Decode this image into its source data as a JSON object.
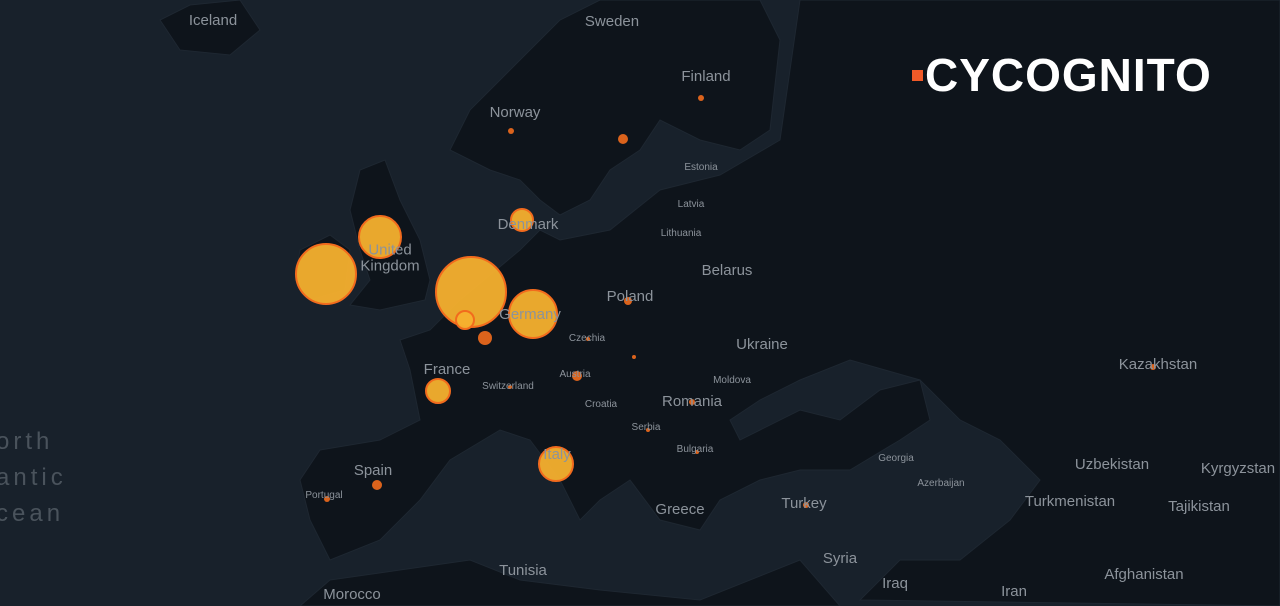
{
  "map": {
    "ocean_label": [
      "orth",
      "antic",
      "cean"
    ],
    "countries": [
      "Iceland",
      "Sweden",
      "Finland",
      "Norway",
      "Estonia",
      "Latvia",
      "Lithuania",
      "Denmark",
      "United Kingdom",
      "Belarus",
      "Poland",
      "Germany",
      "Czechia",
      "Ukraine",
      "Kazakhstan",
      "France",
      "Switzerland",
      "Austria",
      "Moldova",
      "Romania",
      "Croatia",
      "Serbia",
      "Bulgaria",
      "Georgia",
      "Azerbaijan",
      "Uzbekistan",
      "Kyrgyzstan",
      "Spain",
      "Portugal",
      "Italy",
      "Turkey",
      "Turkmenistan",
      "Tajikistan",
      "Greece",
      "Syria",
      "Tunisia",
      "Iraq",
      "Iran",
      "Afghanistan",
      "Morocco"
    ],
    "colors": {
      "land": "#0e141b",
      "water": "#18212b",
      "bubble_fill": "#f5b02e",
      "bubble_stroke": "#f26b1d",
      "marker": "#f26b1d"
    }
  },
  "logo": {
    "text": "CYCOGNITO",
    "accent": "#f05a28"
  }
}
